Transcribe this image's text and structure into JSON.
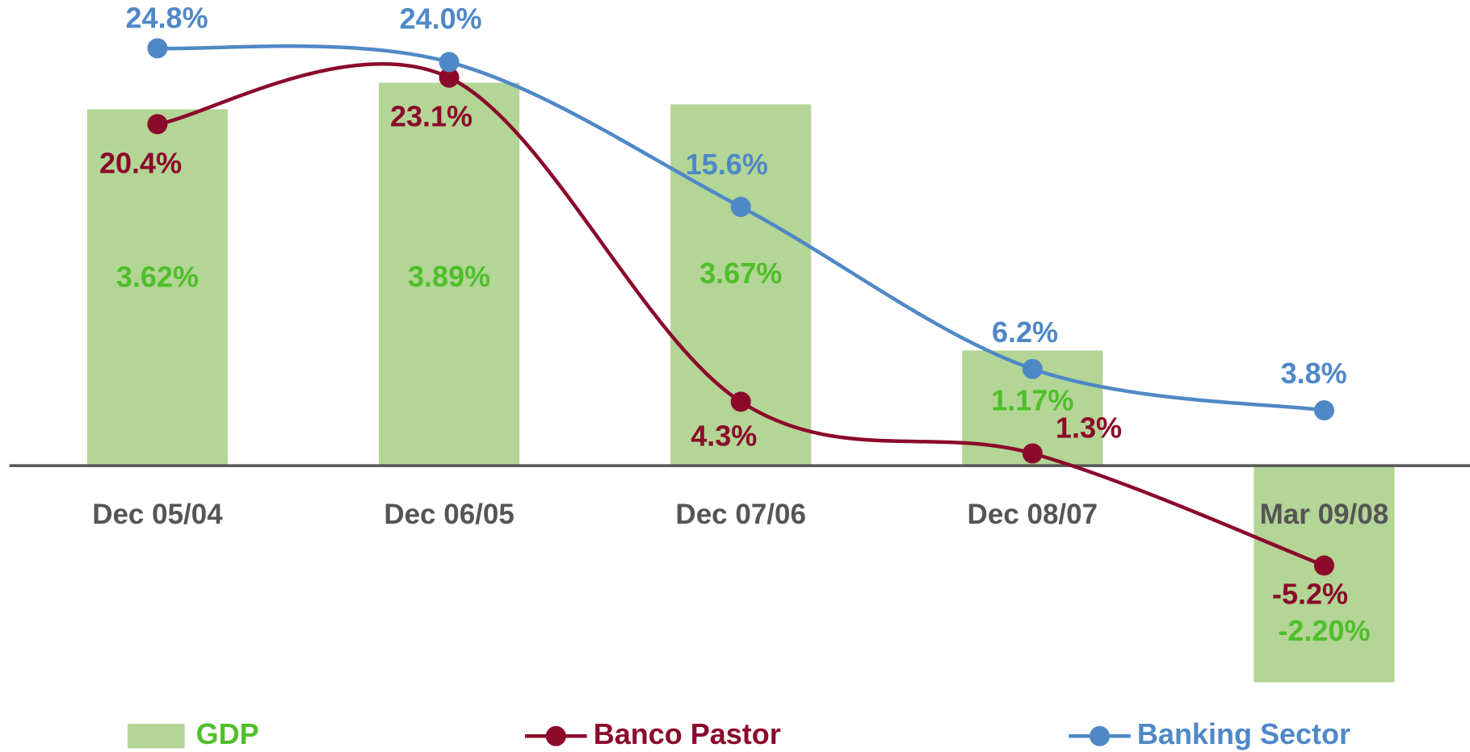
{
  "chart_data": {
    "type": "bar_line",
    "categories": [
      "Dec 05/04",
      "Dec 06/05",
      "Dec 07/06",
      "Dec 08/07",
      "Mar 09/08"
    ],
    "series": [
      {
        "name": "GDP",
        "type": "bar",
        "axis": "y2",
        "color": "#b3d596",
        "label_color": "#4fbf2a",
        "values": [
          3.62,
          3.89,
          3.67,
          1.17,
          -2.2
        ],
        "value_labels": [
          "3.62%",
          "3.89%",
          "3.67%",
          "1.17%",
          "-2.20%"
        ]
      },
      {
        "name": "Banco Pastor",
        "type": "line",
        "color": "#8b0a2b",
        "values": [
          20.4,
          23.1,
          4.3,
          1.3,
          -5.2
        ],
        "value_labels": [
          "20.4%",
          "23.1%",
          "4.3%",
          "1.3%",
          "-5.2%"
        ]
      },
      {
        "name": "Banking Sector",
        "type": "line",
        "color": "#4f88c6",
        "values": [
          24.8,
          24.0,
          15.6,
          6.2,
          3.8
        ],
        "value_labels": [
          "24.8%",
          "24.0%",
          "15.6%",
          "6.2%",
          "3.8%"
        ]
      }
    ],
    "ylim": [
      -12.6,
      27.6
    ],
    "y2lim": [
      -2.31,
      4.73
    ],
    "legend": "bottom"
  }
}
